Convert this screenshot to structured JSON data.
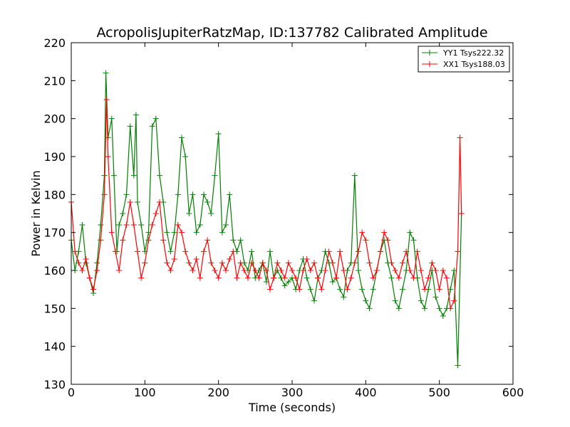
{
  "chart_data": {
    "type": "line",
    "title": "AcropolisJupiterRatzMap, ID:137782 Calibrated Amplitude",
    "xlabel": "Time (seconds)",
    "ylabel": "Power in Kelvin",
    "xlim": [
      0,
      600
    ],
    "ylim": [
      130,
      220
    ],
    "xticks": [
      0,
      100,
      200,
      300,
      400,
      500,
      600
    ],
    "yticks": [
      130,
      140,
      150,
      160,
      170,
      180,
      190,
      200,
      210,
      220
    ],
    "grid": false,
    "legend_position": "top-right",
    "marker": "+",
    "series": [
      {
        "name": "YY1 Tsys222.32",
        "color": "#008000",
        "x": [
          0,
          5,
          10,
          15,
          20,
          25,
          30,
          35,
          40,
          45,
          47,
          50,
          55,
          58,
          62,
          65,
          70,
          75,
          80,
          85,
          88,
          90,
          95,
          100,
          105,
          110,
          115,
          120,
          125,
          130,
          135,
          140,
          145,
          150,
          155,
          160,
          165,
          170,
          175,
          180,
          185,
          190,
          195,
          200,
          205,
          210,
          215,
          220,
          225,
          230,
          235,
          240,
          245,
          250,
          255,
          260,
          265,
          270,
          275,
          280,
          285,
          290,
          295,
          300,
          305,
          310,
          315,
          320,
          325,
          330,
          335,
          340,
          345,
          350,
          355,
          360,
          365,
          370,
          375,
          380,
          385,
          390,
          395,
          400,
          405,
          410,
          415,
          420,
          425,
          430,
          435,
          440,
          445,
          450,
          455,
          460,
          465,
          470,
          475,
          480,
          485,
          490,
          495,
          500,
          505,
          510,
          515,
          520,
          525,
          530
        ],
        "values": [
          168,
          160,
          165,
          172,
          162,
          158,
          154,
          162,
          172,
          185,
          212,
          195,
          200,
          185,
          165,
          172,
          175,
          180,
          198,
          185,
          201,
          178,
          172,
          165,
          170,
          198,
          200,
          185,
          178,
          170,
          165,
          170,
          180,
          195,
          190,
          175,
          180,
          170,
          172,
          180,
          178,
          175,
          185,
          196,
          170,
          172,
          180,
          168,
          165,
          168,
          162,
          160,
          165,
          158,
          160,
          162,
          157,
          165,
          158,
          160,
          158,
          156,
          157,
          158,
          155,
          160,
          163,
          158,
          155,
          152,
          158,
          160,
          165,
          162,
          157,
          158,
          155,
          153,
          160,
          162,
          185,
          160,
          155,
          152,
          150,
          155,
          160,
          165,
          168,
          162,
          158,
          152,
          150,
          155,
          160,
          170,
          168,
          158,
          152,
          150,
          155,
          160,
          153,
          150,
          148,
          150,
          155,
          160,
          135,
          175
        ]
      },
      {
        "name": "XX1 Tsys188.03",
        "color": "#ff0000",
        "x": [
          0,
          5,
          10,
          15,
          20,
          25,
          30,
          35,
          40,
          45,
          48,
          50,
          55,
          60,
          65,
          70,
          75,
          80,
          85,
          90,
          95,
          100,
          105,
          110,
          115,
          120,
          125,
          130,
          135,
          140,
          145,
          150,
          155,
          160,
          165,
          170,
          175,
          180,
          185,
          190,
          195,
          200,
          205,
          210,
          215,
          220,
          225,
          230,
          235,
          240,
          245,
          250,
          255,
          260,
          265,
          270,
          275,
          280,
          285,
          290,
          295,
          300,
          305,
          310,
          315,
          320,
          325,
          330,
          335,
          340,
          345,
          350,
          355,
          360,
          365,
          370,
          375,
          380,
          385,
          390,
          395,
          400,
          405,
          410,
          415,
          420,
          425,
          430,
          435,
          440,
          445,
          450,
          455,
          460,
          465,
          470,
          475,
          480,
          485,
          490,
          495,
          500,
          505,
          510,
          515,
          520,
          525,
          528,
          530
        ],
        "values": [
          178,
          165,
          162,
          160,
          163,
          158,
          155,
          160,
          168,
          180,
          205,
          190,
          170,
          165,
          160,
          168,
          172,
          178,
          172,
          165,
          158,
          162,
          168,
          172,
          175,
          178,
          168,
          162,
          160,
          163,
          172,
          170,
          165,
          162,
          160,
          163,
          158,
          165,
          168,
          162,
          160,
          158,
          162,
          160,
          163,
          165,
          158,
          162,
          160,
          158,
          162,
          160,
          158,
          162,
          160,
          155,
          158,
          162,
          160,
          158,
          162,
          160,
          158,
          155,
          160,
          163,
          160,
          162,
          158,
          155,
          160,
          165,
          162,
          158,
          165,
          160,
          155,
          158,
          162,
          165,
          170,
          168,
          162,
          158,
          160,
          165,
          170,
          168,
          162,
          160,
          158,
          162,
          165,
          160,
          158,
          165,
          160,
          155,
          158,
          162,
          160,
          155,
          160,
          158,
          150,
          152,
          165,
          195,
          175
        ]
      }
    ]
  }
}
